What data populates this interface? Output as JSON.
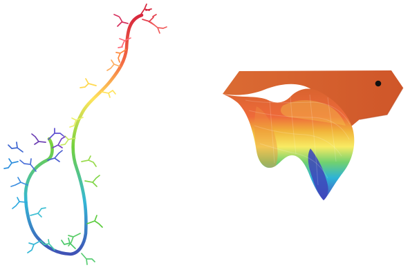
{
  "figure": {
    "left_panel_subject": "chain",
    "right_panel_subject": "energy-landscape-surface",
    "marker_color": "#111111",
    "colors": {
      "red": "#d7263d",
      "orange": "#f46d43",
      "yellow": "#ffe45c",
      "green": "#73d13d",
      "cyan": "#34b7d6",
      "blue": "#3f51b5",
      "purple": "#6c3fb3",
      "surface_top": "#de6a33"
    }
  }
}
